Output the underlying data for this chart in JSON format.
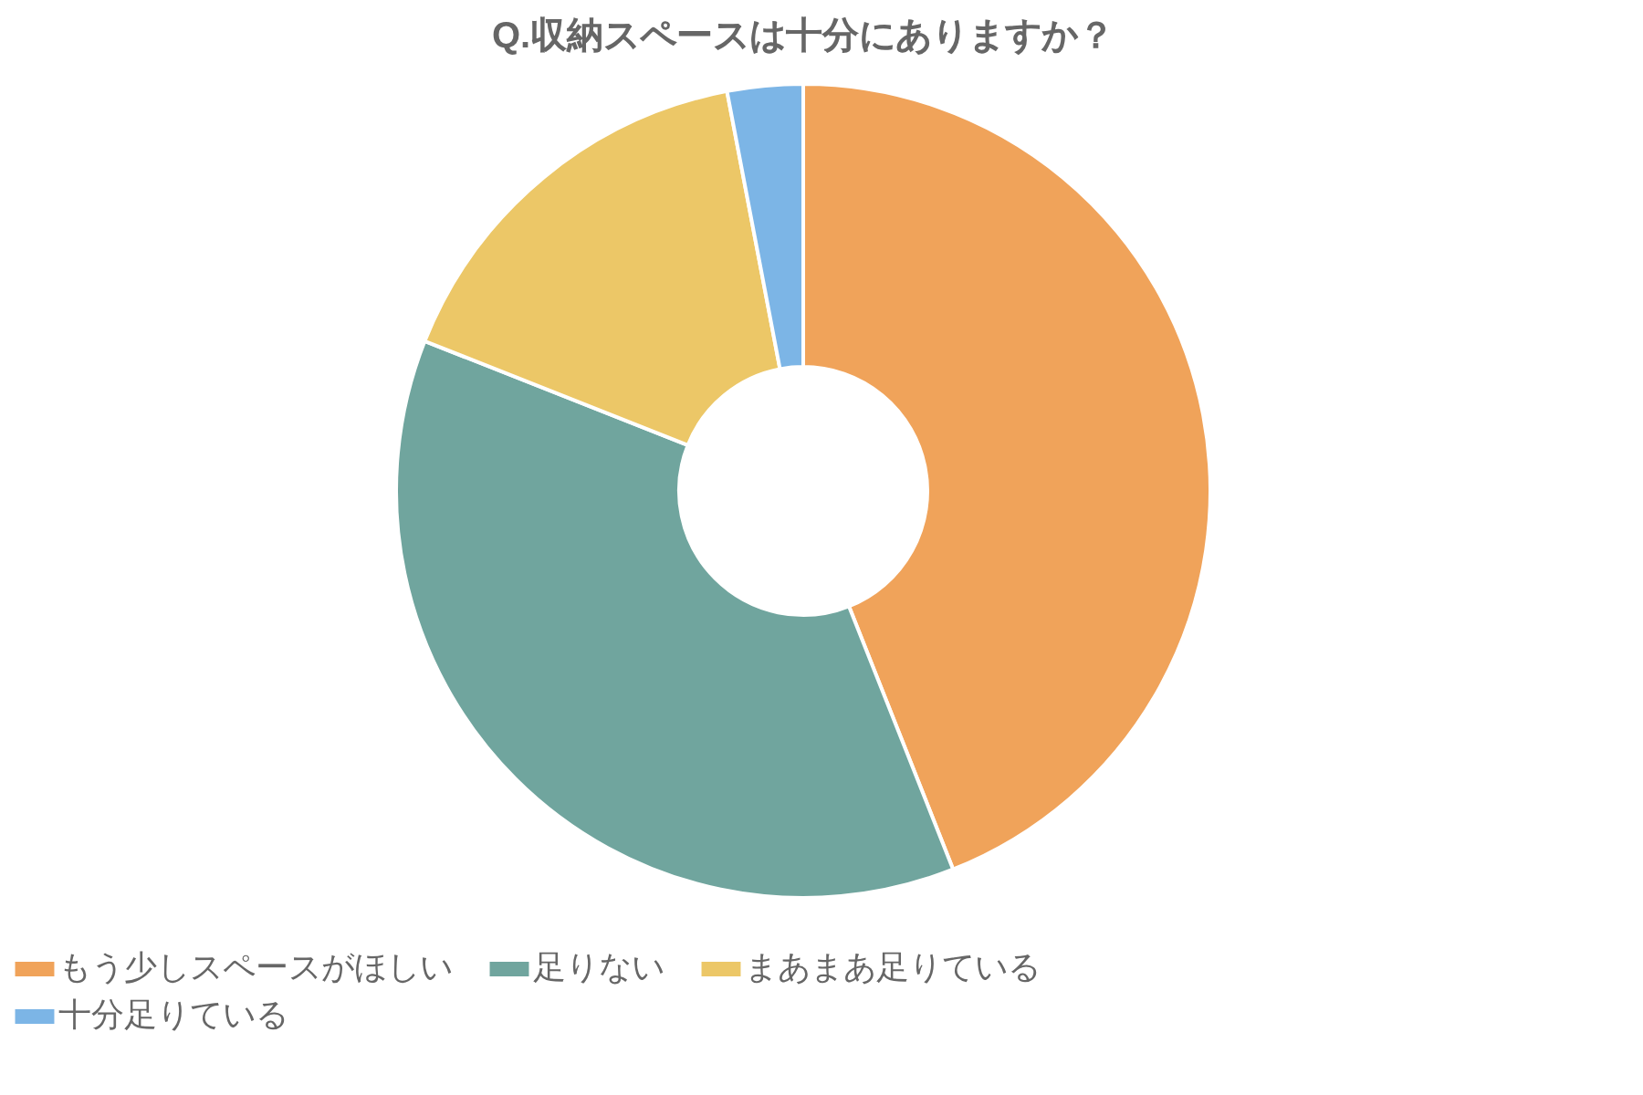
{
  "chart_data": {
    "type": "donut",
    "title": "Q.収納スペースは十分にありますか？",
    "categories": [
      "もう少しスペースがほしい",
      "足りない",
      "まあまあ足りている",
      "十分足りている"
    ],
    "values": [
      44,
      37,
      16,
      3
    ],
    "colors": [
      "#f0a35a",
      "#70a59e",
      "#ecc767",
      "#7cb5e6"
    ],
    "legend": "bottom"
  }
}
